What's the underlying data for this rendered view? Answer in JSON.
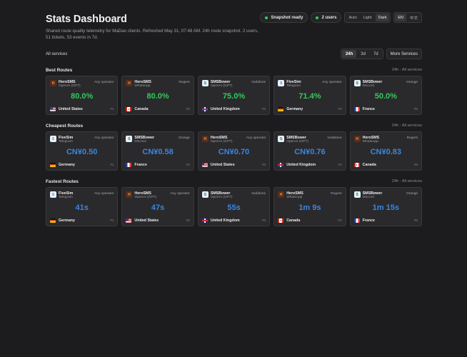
{
  "header": {
    "title": "Stats Dashboard",
    "subtitle": "Shared route quality telemetry for MaDao clients. Refreshed May 31, 07:48 AM. 24h route snapshot. 2 users, 51 tickets, 53 events in 7d.",
    "snapshot_label": "Snapshot ready",
    "users_label": "2 users",
    "theme_options": [
      "Auto",
      "Light",
      "Dark"
    ],
    "theme_selected": "Dark",
    "lang_options": [
      "EN",
      "中文"
    ],
    "lang_selected": "EN"
  },
  "filters": {
    "services_label": "All services",
    "ranges": [
      "24h",
      "3d",
      "7d"
    ],
    "range_selected": "24h",
    "more_label": "More Services"
  },
  "colors": {
    "good": "#35c85c",
    "accent": "#3a86e0",
    "status_dot": "#2fd15a"
  },
  "sections": [
    {
      "title": "Best Routes",
      "meta": "24h · All services",
      "metric_color": "green",
      "cards": [
        {
          "logo": "hero",
          "logo_text": "H",
          "provider": "HeroSMS",
          "service": "OpenAI (GPT)",
          "operator": "Any operator",
          "metric": "80.0%",
          "flag": "us",
          "country": "United States",
          "rank": "#1"
        },
        {
          "logo": "hero",
          "logo_text": "H",
          "provider": "HeroSMS",
          "service": "WhatsApp",
          "operator": "Rogers",
          "metric": "80.0%",
          "flag": "ca",
          "country": "Canada",
          "rank": "#2"
        },
        {
          "logo": "smsb",
          "logo_text": "S",
          "provider": "SMSBower",
          "service": "OpenAI (GPT)",
          "operator": "Vodafone",
          "metric": "75.0%",
          "flag": "uk",
          "country": "United Kingdom",
          "rank": "#3"
        },
        {
          "logo": "five",
          "logo_text": "5",
          "provider": "FiveSim",
          "service": "Telegram",
          "operator": "Any operator",
          "metric": "71.4%",
          "flag": "de",
          "country": "Germany",
          "rank": "#4"
        },
        {
          "logo": "smsb",
          "logo_text": "S",
          "provider": "SMSBower",
          "service": "Discord",
          "operator": "Orange",
          "metric": "50.0%",
          "flag": "fr",
          "country": "France",
          "rank": "#5"
        }
      ]
    },
    {
      "title": "Cheapest Routes",
      "meta": "24h · All services",
      "metric_color": "blue",
      "cards": [
        {
          "logo": "five",
          "logo_text": "5",
          "provider": "FiveSim",
          "service": "Telegram",
          "operator": "Any operator",
          "metric": "CN¥0.50",
          "flag": "de",
          "country": "Germany",
          "rank": "#1"
        },
        {
          "logo": "smsb",
          "logo_text": "S",
          "provider": "SMSBower",
          "service": "Discord",
          "operator": "Orange",
          "metric": "CN¥0.58",
          "flag": "fr",
          "country": "France",
          "rank": "#2"
        },
        {
          "logo": "hero",
          "logo_text": "H",
          "provider": "HeroSMS",
          "service": "OpenAI (GPT)",
          "operator": "Any operator",
          "metric": "CN¥0.70",
          "flag": "us",
          "country": "United States",
          "rank": "#3"
        },
        {
          "logo": "smsb",
          "logo_text": "S",
          "provider": "SMSBower",
          "service": "OpenAI (GPT)",
          "operator": "Vodafone",
          "metric": "CN¥0.76",
          "flag": "uk",
          "country": "United Kingdom",
          "rank": "#4"
        },
        {
          "logo": "hero",
          "logo_text": "H",
          "provider": "HeroSMS",
          "service": "WhatsApp",
          "operator": "Rogers",
          "metric": "CN¥0.83",
          "flag": "ca",
          "country": "Canada",
          "rank": "#5"
        }
      ]
    },
    {
      "title": "Fastest Routes",
      "meta": "24h · All services",
      "metric_color": "blue",
      "cards": [
        {
          "logo": "five",
          "logo_text": "5",
          "provider": "FiveSim",
          "service": "Telegram",
          "operator": "Any operator",
          "metric": "41s",
          "flag": "de",
          "country": "Germany",
          "rank": "#1"
        },
        {
          "logo": "hero",
          "logo_text": "H",
          "provider": "HeroSMS",
          "service": "OpenAI (GPT)",
          "operator": "Any operator",
          "metric": "47s",
          "flag": "us",
          "country": "United States",
          "rank": "#2"
        },
        {
          "logo": "smsb",
          "logo_text": "S",
          "provider": "SMSBower",
          "service": "OpenAI (GPT)",
          "operator": "Vodafone",
          "metric": "55s",
          "flag": "uk",
          "country": "United Kingdom",
          "rank": "#3"
        },
        {
          "logo": "hero",
          "logo_text": "H",
          "provider": "HeroSMS",
          "service": "WhatsApp",
          "operator": "Rogers",
          "metric": "1m 9s",
          "flag": "ca",
          "country": "Canada",
          "rank": "#4"
        },
        {
          "logo": "smsb",
          "logo_text": "S",
          "provider": "SMSBower",
          "service": "Discord",
          "operator": "Orange",
          "metric": "1m 15s",
          "flag": "fr",
          "country": "France",
          "rank": "#5"
        }
      ]
    }
  ]
}
